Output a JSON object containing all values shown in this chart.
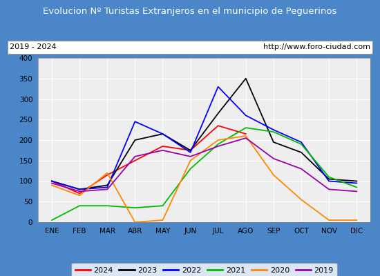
{
  "title": "Evolucion Nº Turistas Extranjeros en el municipio de Peguerinos",
  "subtitle_left": "2019 - 2024",
  "subtitle_right": "http://www.foro-ciudad.com",
  "months": [
    "ENE",
    "FEB",
    "MAR",
    "ABR",
    "MAY",
    "JUN",
    "JUL",
    "AGO",
    "SEP",
    "OCT",
    "NOV",
    "DIC"
  ],
  "ylim": [
    0,
    400
  ],
  "yticks": [
    0,
    50,
    100,
    150,
    200,
    250,
    300,
    350,
    400
  ],
  "series": {
    "2024": {
      "color": "#ff0000",
      "data": [
        100,
        70,
        115,
        150,
        185,
        175,
        235,
        215,
        null,
        null,
        null,
        null
      ]
    },
    "2023": {
      "color": "#000000",
      "data": [
        100,
        80,
        90,
        200,
        215,
        175,
        265,
        350,
        195,
        170,
        105,
        100
      ]
    },
    "2022": {
      "color": "#0000ff",
      "data": [
        100,
        80,
        85,
        245,
        215,
        170,
        330,
        260,
        225,
        195,
        100,
        95
      ]
    },
    "2021": {
      "color": "#00bb00",
      "data": [
        5,
        40,
        40,
        35,
        40,
        130,
        190,
        230,
        220,
        190,
        110,
        85
      ]
    },
    "2020": {
      "color": "#ff8800",
      "data": [
        90,
        65,
        120,
        0,
        5,
        150,
        200,
        210,
        115,
        55,
        5,
        5
      ]
    },
    "2019": {
      "color": "#9900aa",
      "data": [
        95,
        75,
        80,
        160,
        175,
        160,
        185,
        205,
        155,
        130,
        80,
        75
      ]
    }
  },
  "title_bg_color": "#4a86c8",
  "title_text_color": "#ffffff",
  "plot_bg_color": "#eeeeee",
  "grid_color": "#ffffff",
  "subtitle_box_color": "#ffffff",
  "subtitle_border_color": "#999999"
}
